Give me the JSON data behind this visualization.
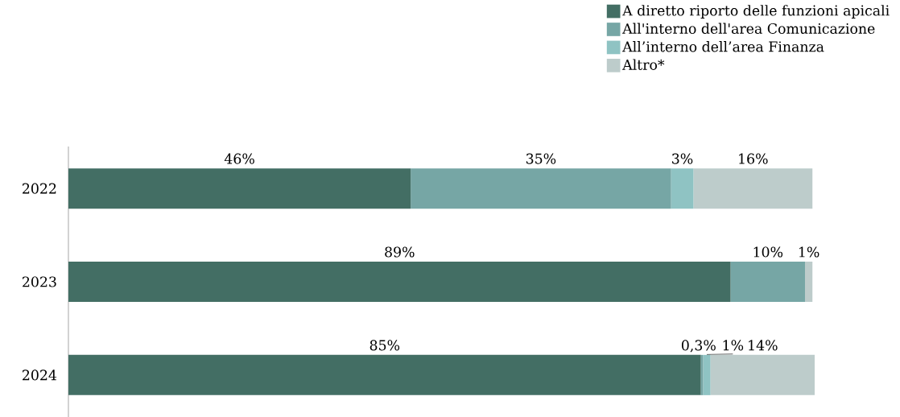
{
  "chart_data": {
    "type": "bar",
    "orientation": "horizontal",
    "stacked": true,
    "categories": [
      "2022",
      "2023",
      "2024"
    ],
    "xlim": [
      0,
      100.3
    ],
    "legend": "top right",
    "series": [
      {
        "name": "A diretto riporto delle funzioni apicali",
        "color": "#436e64",
        "values": [
          46,
          89,
          85
        ],
        "value_labels": [
          "46%",
          "89%",
          "85%"
        ]
      },
      {
        "name": "All'interno dell'area Comunicazione",
        "color": "#76a6a5",
        "values": [
          35,
          10,
          0.3
        ],
        "value_labels": [
          "35%",
          "10%",
          "0,3%"
        ]
      },
      {
        "name": "All’interno dell’area Finanza",
        "color": "#8fc3c3",
        "values": [
          3,
          null,
          1
        ],
        "value_labels": [
          "3%",
          null,
          "1%"
        ]
      },
      {
        "name": "Altro*",
        "color": "#bdcccb",
        "values": [
          16,
          1,
          14
        ],
        "value_labels": [
          "16%",
          "1%",
          "14%"
        ]
      }
    ]
  }
}
